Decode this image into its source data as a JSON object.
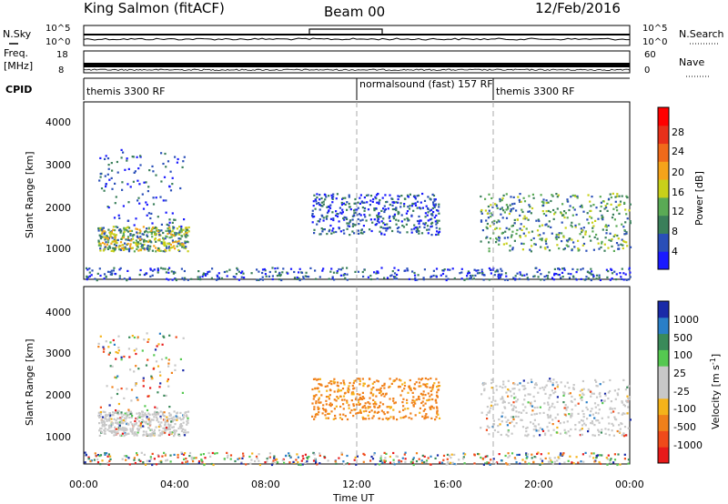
{
  "header": {
    "station": "King Salmon (fitACF)",
    "beam": "Beam 00",
    "date": "12/Feb/2016"
  },
  "colors": {
    "power": [
      "#1a1aff",
      "#2a4fb8",
      "#3a7f5a",
      "#5aaa55",
      "#c8d01a",
      "#f5a31a",
      "#f06a1a",
      "#e8301a",
      "#ff0000"
    ],
    "velocity": [
      "#1a2aa8",
      "#2a7fc8",
      "#3a8a5a",
      "#55c850",
      "#c8c8c8",
      "#c8c8c8",
      "#f5b31a",
      "#f0801a",
      "#f04a1a",
      "#e81a1a"
    ],
    "grid_dash": "#aaaaaa"
  },
  "noise_panel": {
    "left_label": "N.Sky",
    "right_label": "N.Search",
    "left_ticks": [
      "10^5",
      "10^0"
    ],
    "right_ticks": [
      "10^5",
      "10^0"
    ]
  },
  "freq_panel": {
    "left_label_1": "Freq.",
    "left_label_2": "[MHz]",
    "right_label": "Nave",
    "left_ticks": [
      "18",
      "8"
    ],
    "right_ticks": [
      "60",
      "0"
    ]
  },
  "cpid_panel": {
    "label": "CPID",
    "segments": [
      {
        "text": "themis 3300 RF",
        "start_hour": 0
      },
      {
        "text": "normalsound (fast) 157 RF",
        "start_hour": 12
      },
      {
        "text": "themis 3300 RF",
        "start_hour": 18
      }
    ]
  },
  "time_axis": {
    "title": "Time UT",
    "ticks": [
      "00:00",
      "04:00",
      "08:00",
      "12:00",
      "16:00",
      "20:00",
      "00:00"
    ]
  },
  "power_colorbar": {
    "title": "Power [dB]",
    "ticks": [
      "28",
      "24",
      "20",
      "16",
      "12",
      "8",
      "4"
    ]
  },
  "velocity_colorbar": {
    "title": "Velocity [m s",
    "title_sup": "-1",
    "title_end": "]",
    "ticks": [
      "1000",
      "500",
      "100",
      "25",
      "-25",
      "-100",
      "-500",
      "-1000"
    ]
  },
  "chart_data": [
    {
      "type": "heatmap",
      "title": "Power",
      "xlabel": "Time UT",
      "ylabel": "Slant Range [km]",
      "xlim": [
        0,
        24
      ],
      "ylim": [
        200,
        4500
      ],
      "yticks": [
        "1000",
        "2000",
        "3000",
        "4000"
      ],
      "colorbar": {
        "label": "Power [dB]",
        "range": [
          0,
          30
        ]
      },
      "regions": [
        {
          "t0": 0.6,
          "t1": 4.6,
          "r0": 900,
          "r1": 1500,
          "level": "moderate-high"
        },
        {
          "t0": 0.6,
          "t1": 4.4,
          "r0": 1500,
          "r1": 3400,
          "level": "low"
        },
        {
          "t0": 10.0,
          "t1": 15.6,
          "r0": 1300,
          "r1": 2300,
          "level": "low"
        },
        {
          "t0": 17.4,
          "t1": 24.0,
          "r0": 900,
          "r1": 2300,
          "level": "moderate"
        },
        {
          "t0": 0.0,
          "t1": 24.0,
          "r0": 200,
          "r1": 500,
          "level": "low"
        }
      ]
    },
    {
      "type": "heatmap",
      "title": "Velocity",
      "xlabel": "Time UT",
      "ylabel": "Slant Range [km]",
      "xlim": [
        0,
        24
      ],
      "ylim": [
        200,
        4500
      ],
      "yticks": [
        "1000",
        "2000",
        "3000",
        "4000"
      ],
      "colorbar": {
        "label": "Velocity [m s-1]",
        "range": [
          -1000,
          1000
        ]
      },
      "regions": [
        {
          "t0": 0.6,
          "t1": 4.6,
          "r0": 900,
          "r1": 1500,
          "level": "near-zero"
        },
        {
          "t0": 0.6,
          "t1": 4.4,
          "r0": 1500,
          "r1": 3400,
          "level": "mixed"
        },
        {
          "t0": 10.0,
          "t1": 15.6,
          "r0": 1300,
          "r1": 2300,
          "level": "negative (-100 to -500)"
        },
        {
          "t0": 17.4,
          "t1": 24.0,
          "r0": 900,
          "r1": 2300,
          "level": "near-zero"
        },
        {
          "t0": 0.0,
          "t1": 24.0,
          "r0": 200,
          "r1": 500,
          "level": "mixed"
        }
      ]
    }
  ]
}
